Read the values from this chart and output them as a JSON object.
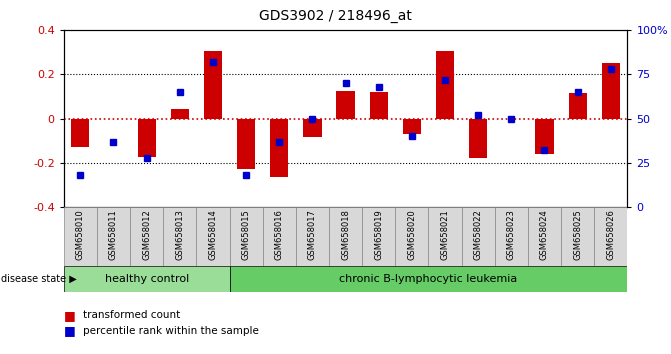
{
  "title": "GDS3902 / 218496_at",
  "samples": [
    "GSM658010",
    "GSM658011",
    "GSM658012",
    "GSM658013",
    "GSM658014",
    "GSM658015",
    "GSM658016",
    "GSM658017",
    "GSM658018",
    "GSM658019",
    "GSM658020",
    "GSM658021",
    "GSM658022",
    "GSM658023",
    "GSM658024",
    "GSM658025",
    "GSM658026"
  ],
  "red_values": [
    -0.13,
    0.0,
    -0.175,
    0.045,
    0.305,
    -0.23,
    -0.265,
    -0.085,
    0.125,
    0.12,
    -0.07,
    0.305,
    -0.18,
    0.0,
    -0.16,
    0.115,
    0.25
  ],
  "blue_percentiles": [
    18,
    37,
    28,
    65,
    82,
    18,
    37,
    50,
    70,
    68,
    40,
    72,
    52,
    50,
    32,
    65,
    78
  ],
  "healthy_count": 5,
  "ylim_left": [
    -0.4,
    0.4
  ],
  "ylim_right": [
    0,
    100
  ],
  "yticks_left": [
    -0.4,
    -0.2,
    0.0,
    0.2,
    0.4
  ],
  "yticks_right": [
    0,
    25,
    50,
    75,
    100
  ],
  "ytick_labels_right": [
    "0",
    "25",
    "50",
    "75",
    "100%"
  ],
  "red_color": "#cc0000",
  "blue_color": "#0000cc",
  "healthy_color_light": "#99dd99",
  "healthy_color_dark": "#66cc66",
  "healthy_label": "healthy control",
  "leukemia_label": "chronic B-lymphocytic leukemia",
  "disease_state_label": "disease state",
  "legend_red": "transformed count",
  "legend_blue": "percentile rank within the sample",
  "bar_width": 0.55
}
